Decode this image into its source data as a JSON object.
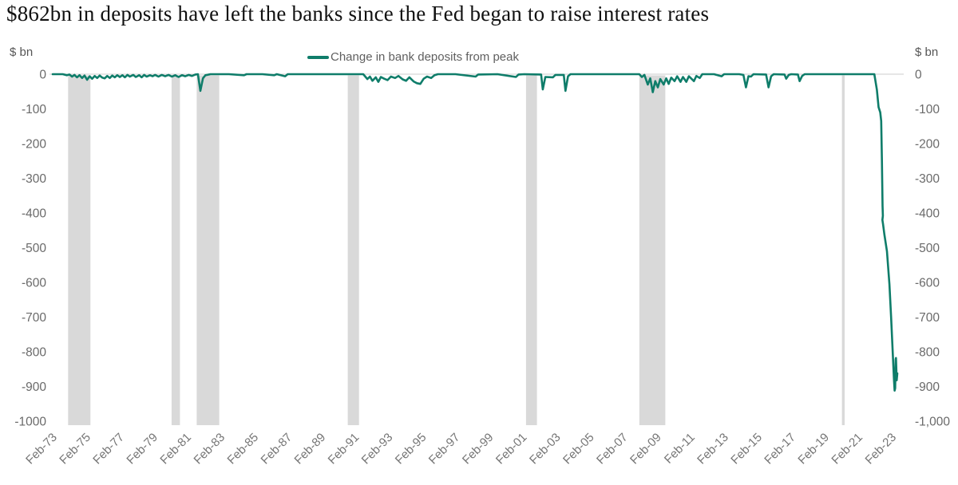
{
  "title": "$862bn in deposits have left the banks since the Fed began to raise interest rates",
  "axis_units": {
    "left": "$ bn",
    "right": "$ bn"
  },
  "legend": {
    "label": "Change in bank deposits from peak",
    "color": "#0f7d6a"
  },
  "chart_data": {
    "type": "line",
    "title": "$862bn in deposits have left the banks since the Fed began to raise interest rates",
    "xlabel": "",
    "ylabel": "$ bn",
    "xlim": [
      1973.0,
      2023.7
    ],
    "ylim": [
      -1000,
      0
    ],
    "grid": false,
    "legend_position": "top-center",
    "line_color": "#0f7d6a",
    "band_color": "#d9d9d9",
    "zero_line_color": "#cccccc",
    "y_ticks_left": [
      "0",
      "-100",
      "-200",
      "-300",
      "-400",
      "-500",
      "-600",
      "-700",
      "-800",
      "-900",
      "-1000"
    ],
    "y_ticks_right": [
      "0",
      "-100",
      "-200",
      "-300",
      "-400",
      "-500",
      "-600",
      "-700",
      "-800",
      "-900",
      "-1,000"
    ],
    "x_ticks": [
      {
        "label": "Feb-73",
        "year": 1973
      },
      {
        "label": "Feb-75",
        "year": 1975
      },
      {
        "label": "Feb-77",
        "year": 1977
      },
      {
        "label": "Feb-79",
        "year": 1979
      },
      {
        "label": "Feb-81",
        "year": 1981
      },
      {
        "label": "Feb-83",
        "year": 1983
      },
      {
        "label": "Feb-85",
        "year": 1985
      },
      {
        "label": "Feb-87",
        "year": 1987
      },
      {
        "label": "Feb-89",
        "year": 1989
      },
      {
        "label": "Feb-91",
        "year": 1991
      },
      {
        "label": "Feb-93",
        "year": 1993
      },
      {
        "label": "Feb-95",
        "year": 1995
      },
      {
        "label": "Feb-97",
        "year": 1997
      },
      {
        "label": "Feb-99",
        "year": 1999
      },
      {
        "label": "Feb-01",
        "year": 2001
      },
      {
        "label": "Feb-03",
        "year": 2003
      },
      {
        "label": "Feb-05",
        "year": 2005
      },
      {
        "label": "Feb-07",
        "year": 2007
      },
      {
        "label": "Feb-09",
        "year": 2009
      },
      {
        "label": "Feb-11",
        "year": 2011
      },
      {
        "label": "Feb-13",
        "year": 2013
      },
      {
        "label": "Feb-15",
        "year": 2015
      },
      {
        "label": "Feb-17",
        "year": 2017
      },
      {
        "label": "Feb-19",
        "year": 2019
      },
      {
        "label": "Feb-21",
        "year": 2021
      },
      {
        "label": "Feb-23",
        "year": 2023
      }
    ],
    "recession_bands": [
      [
        1973.92,
        1975.25
      ],
      [
        1980.08,
        1980.58
      ],
      [
        1981.58,
        1982.92
      ],
      [
        1990.58,
        1991.25
      ],
      [
        2001.2,
        2001.85
      ],
      [
        2007.95,
        2009.5
      ],
      [
        2020.02,
        2020.18
      ]
    ],
    "series": [
      {
        "name": "Change in bank deposits from peak",
        "color": "#0f7d6a",
        "points": [
          [
            1973.0,
            0
          ],
          [
            1973.6,
            0
          ],
          [
            1973.85,
            -3
          ],
          [
            1974.0,
            -1
          ],
          [
            1974.15,
            -7
          ],
          [
            1974.3,
            -2
          ],
          [
            1974.45,
            -9
          ],
          [
            1974.6,
            -3
          ],
          [
            1974.75,
            -11
          ],
          [
            1974.9,
            -4
          ],
          [
            1975.05,
            -16
          ],
          [
            1975.2,
            -6
          ],
          [
            1975.35,
            -13
          ],
          [
            1975.5,
            -5
          ],
          [
            1975.65,
            -11
          ],
          [
            1975.8,
            -4
          ],
          [
            1975.95,
            -10
          ],
          [
            1976.1,
            -12
          ],
          [
            1976.25,
            -5
          ],
          [
            1976.4,
            -11
          ],
          [
            1976.55,
            -4
          ],
          [
            1976.7,
            -9
          ],
          [
            1976.85,
            -3
          ],
          [
            1977.0,
            -8
          ],
          [
            1977.15,
            -3
          ],
          [
            1977.3,
            -9
          ],
          [
            1977.45,
            -2
          ],
          [
            1977.6,
            -7
          ],
          [
            1977.8,
            -2
          ],
          [
            1977.95,
            -8
          ],
          [
            1978.15,
            -3
          ],
          [
            1978.3,
            -9
          ],
          [
            1978.45,
            -2
          ],
          [
            1978.6,
            -7
          ],
          [
            1978.8,
            -3
          ],
          [
            1978.95,
            -6
          ],
          [
            1979.1,
            -2
          ],
          [
            1979.3,
            -7
          ],
          [
            1979.5,
            -2
          ],
          [
            1979.7,
            -6
          ],
          [
            1979.9,
            -2
          ],
          [
            1980.1,
            -7
          ],
          [
            1980.3,
            -3
          ],
          [
            1980.5,
            -8
          ],
          [
            1980.7,
            -3
          ],
          [
            1980.9,
            -6
          ],
          [
            1981.1,
            -2
          ],
          [
            1981.3,
            -5
          ],
          [
            1981.5,
            -1
          ],
          [
            1981.65,
            0
          ],
          [
            1981.8,
            -48
          ],
          [
            1981.95,
            -12
          ],
          [
            1982.1,
            -3
          ],
          [
            1982.4,
            0
          ],
          [
            1983.5,
            0
          ],
          [
            1984.4,
            -3
          ],
          [
            1984.55,
            0
          ],
          [
            1985.5,
            0
          ],
          [
            1986.2,
            -3
          ],
          [
            1986.35,
            0
          ],
          [
            1986.85,
            -6
          ],
          [
            1987.0,
            0
          ],
          [
            1988.5,
            0
          ],
          [
            1990.0,
            0
          ],
          [
            1991.5,
            0
          ],
          [
            1991.75,
            -14
          ],
          [
            1991.9,
            -7
          ],
          [
            1992.05,
            -19
          ],
          [
            1992.25,
            -9
          ],
          [
            1992.4,
            -22
          ],
          [
            1992.55,
            -8
          ],
          [
            1992.75,
            -13
          ],
          [
            1992.95,
            -17
          ],
          [
            1993.15,
            -7
          ],
          [
            1993.4,
            -11
          ],
          [
            1993.6,
            -5
          ],
          [
            1993.85,
            -15
          ],
          [
            1994.05,
            -19
          ],
          [
            1994.25,
            -9
          ],
          [
            1994.5,
            -21
          ],
          [
            1994.7,
            -26
          ],
          [
            1994.9,
            -28
          ],
          [
            1995.1,
            -13
          ],
          [
            1995.3,
            -7
          ],
          [
            1995.55,
            -11
          ],
          [
            1995.75,
            -3
          ],
          [
            1995.95,
            0
          ],
          [
            1997.0,
            0
          ],
          [
            1998.2,
            -7
          ],
          [
            1998.35,
            -1
          ],
          [
            1999.5,
            0
          ],
          [
            2000.6,
            -8
          ],
          [
            2000.75,
            -1
          ],
          [
            2001.1,
            0
          ],
          [
            2002.1,
            -1
          ],
          [
            2002.2,
            -44
          ],
          [
            2002.35,
            -8
          ],
          [
            2002.8,
            -9
          ],
          [
            2002.95,
            -2
          ],
          [
            2003.45,
            -2
          ],
          [
            2003.55,
            -48
          ],
          [
            2003.7,
            -6
          ],
          [
            2003.85,
            0
          ],
          [
            2005.0,
            0
          ],
          [
            2007.0,
            0
          ],
          [
            2007.95,
            0
          ],
          [
            2008.1,
            -8
          ],
          [
            2008.25,
            -2
          ],
          [
            2008.45,
            -30
          ],
          [
            2008.6,
            -12
          ],
          [
            2008.75,
            -52
          ],
          [
            2008.9,
            -20
          ],
          [
            2009.05,
            -38
          ],
          [
            2009.2,
            -14
          ],
          [
            2009.4,
            -30
          ],
          [
            2009.55,
            -12
          ],
          [
            2009.7,
            -28
          ],
          [
            2009.85,
            -10
          ],
          [
            2010.05,
            -20
          ],
          [
            2010.2,
            -6
          ],
          [
            2010.4,
            -22
          ],
          [
            2010.55,
            -8
          ],
          [
            2010.75,
            -22
          ],
          [
            2010.9,
            -6
          ],
          [
            2011.2,
            -20
          ],
          [
            2011.35,
            -5
          ],
          [
            2011.55,
            -11
          ],
          [
            2011.7,
            0
          ],
          [
            2012.4,
            0
          ],
          [
            2012.85,
            -6
          ],
          [
            2013.0,
            0
          ],
          [
            2013.9,
            0
          ],
          [
            2014.15,
            -2
          ],
          [
            2014.3,
            -38
          ],
          [
            2014.45,
            -6
          ],
          [
            2014.6,
            -7
          ],
          [
            2014.75,
            0
          ],
          [
            2015.5,
            -1
          ],
          [
            2015.65,
            -38
          ],
          [
            2015.8,
            -6
          ],
          [
            2015.95,
            0
          ],
          [
            2016.6,
            -1
          ],
          [
            2016.7,
            -13
          ],
          [
            2016.85,
            -2
          ],
          [
            2017.0,
            0
          ],
          [
            2017.4,
            -1
          ],
          [
            2017.5,
            -20
          ],
          [
            2017.65,
            -5
          ],
          [
            2017.8,
            0
          ],
          [
            2019.0,
            0
          ],
          [
            2020.0,
            0
          ],
          [
            2021.5,
            0
          ],
          [
            2021.95,
            0
          ],
          [
            2022.1,
            -45
          ],
          [
            2022.2,
            -95
          ],
          [
            2022.3,
            -110
          ],
          [
            2022.36,
            -135
          ],
          [
            2022.4,
            -250
          ],
          [
            2022.44,
            -380
          ],
          [
            2022.46,
            -408
          ],
          [
            2022.43,
            -420
          ],
          [
            2022.47,
            -432
          ],
          [
            2022.55,
            -462
          ],
          [
            2022.7,
            -510
          ],
          [
            2022.85,
            -605
          ],
          [
            2022.95,
            -700
          ],
          [
            2023.02,
            -775
          ],
          [
            2023.08,
            -840
          ],
          [
            2023.12,
            -880
          ],
          [
            2023.16,
            -912
          ],
          [
            2023.19,
            -905
          ],
          [
            2023.22,
            -822
          ],
          [
            2023.24,
            -818
          ],
          [
            2023.28,
            -882
          ],
          [
            2023.32,
            -862
          ]
        ]
      }
    ]
  }
}
